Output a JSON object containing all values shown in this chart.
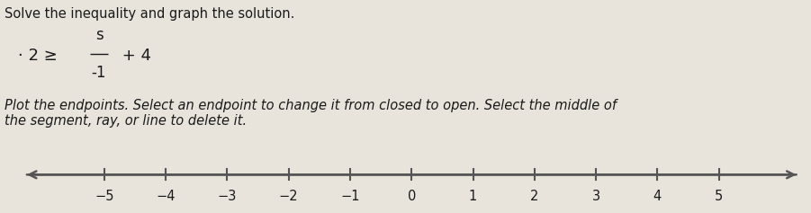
{
  "title": "Solve the inequality and graph the solution.",
  "eq_prefix": "2 ≥ ",
  "eq_numerator": "s",
  "eq_denominator": "-1",
  "eq_suffix": "+ 4",
  "instruction": "Plot the endpoints. Select an endpoint to change it from closed to open. Select the middle of\nthe segment, ray, or line to delete it.",
  "tick_positions": [
    -5,
    -4,
    -3,
    -2,
    -1,
    0,
    1,
    2,
    3,
    4,
    5
  ],
  "background_color": "#e8e4dc",
  "text_color": "#1a1a1a",
  "line_color": "#555555",
  "title_fontsize": 10.5,
  "eq_fontsize": 13,
  "instruction_fontsize": 10.5
}
